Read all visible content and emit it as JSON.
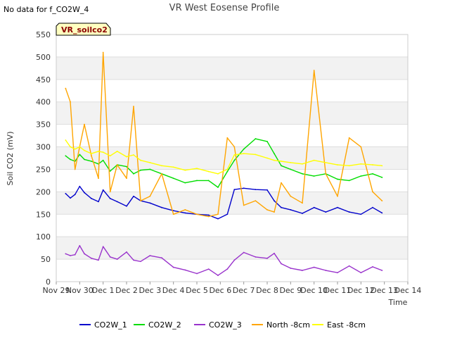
{
  "chart_data": {
    "type": "line",
    "title": "VR West Eosense Profile",
    "note": "No data for f_CO2W_4",
    "badge": "VR_soilco2",
    "xlabel": "Time",
    "ylabel": "Soil CO2 (mV)",
    "ylim": [
      0,
      550
    ],
    "yticks": [
      0,
      50,
      100,
      150,
      200,
      250,
      300,
      350,
      400,
      450,
      500,
      550
    ],
    "x_start": "Nov 29",
    "x_ticks": [
      "Nov 29",
      "Nov 30",
      "Dec 1",
      "Dec 2",
      "Dec 3",
      "Dec 4",
      "Dec 5",
      "Dec 6",
      "Dec 7",
      "Dec 8",
      "Dec 9",
      "Dec 10",
      "Dec 11",
      "Dec 12",
      "Dec 13",
      "Dec 14"
    ],
    "grid": true,
    "legend_position": "bottom",
    "series": [
      {
        "name": "CO2W_1",
        "color": "#0000cc",
        "x": [
          0.4,
          0.6,
          0.8,
          1.0,
          1.2,
          1.5,
          1.8,
          2.0,
          2.3,
          2.6,
          3.0,
          3.3,
          3.6,
          4.0,
          4.5,
          5.0,
          5.5,
          6.0,
          6.5,
          6.9,
          7.3,
          7.6,
          8.0,
          8.5,
          9.0,
          9.3,
          9.6,
          10.0,
          10.5,
          11.0,
          11.5,
          12.0,
          12.5,
          13.0,
          13.5,
          13.9
        ],
        "y": [
          196,
          186,
          194,
          212,
          198,
          185,
          178,
          204,
          185,
          178,
          168,
          190,
          180,
          175,
          165,
          158,
          153,
          150,
          148,
          140,
          150,
          205,
          208,
          205,
          204,
          180,
          165,
          160,
          152,
          165,
          155,
          165,
          155,
          150,
          165,
          153
        ]
      },
      {
        "name": "CO2W_2",
        "color": "#00dd00",
        "x": [
          0.4,
          0.6,
          0.8,
          1.0,
          1.2,
          1.5,
          1.8,
          2.0,
          2.3,
          2.6,
          3.0,
          3.3,
          3.6,
          4.0,
          4.5,
          5.0,
          5.5,
          6.0,
          6.5,
          6.9,
          7.3,
          7.6,
          8.0,
          8.5,
          9.0,
          9.3,
          9.6,
          10.0,
          10.5,
          11.0,
          11.5,
          12.0,
          12.5,
          13.0,
          13.5,
          13.9
        ],
        "y": [
          280,
          272,
          268,
          283,
          272,
          268,
          262,
          270,
          246,
          260,
          256,
          240,
          248,
          250,
          240,
          230,
          220,
          225,
          225,
          210,
          245,
          270,
          295,
          318,
          312,
          285,
          258,
          250,
          240,
          235,
          240,
          228,
          225,
          235,
          240,
          232
        ]
      },
      {
        "name": "CO2W_3",
        "color": "#9933cc",
        "x": [
          0.4,
          0.6,
          0.8,
          1.0,
          1.2,
          1.5,
          1.8,
          2.0,
          2.3,
          2.6,
          3.0,
          3.3,
          3.6,
          4.0,
          4.5,
          5.0,
          5.5,
          6.0,
          6.5,
          6.9,
          7.3,
          7.6,
          8.0,
          8.5,
          9.0,
          9.3,
          9.6,
          10.0,
          10.5,
          11.0,
          11.5,
          12.0,
          12.5,
          13.0,
          13.5,
          13.9
        ],
        "y": [
          62,
          58,
          60,
          80,
          62,
          52,
          48,
          78,
          55,
          50,
          66,
          48,
          45,
          58,
          53,
          32,
          26,
          18,
          28,
          14,
          28,
          48,
          65,
          55,
          52,
          63,
          40,
          30,
          25,
          32,
          25,
          20,
          35,
          20,
          33,
          25
        ]
      },
      {
        "name": "North -8cm",
        "color": "#ffa500",
        "x": [
          0.4,
          0.6,
          0.8,
          1.0,
          1.2,
          1.5,
          1.8,
          2.0,
          2.3,
          2.6,
          3.0,
          3.3,
          3.6,
          4.0,
          4.5,
          5.0,
          5.5,
          6.0,
          6.5,
          6.9,
          7.3,
          7.6,
          8.0,
          8.5,
          9.0,
          9.3,
          9.6,
          10.0,
          10.5,
          11.0,
          11.5,
          12.0,
          12.5,
          13.0,
          13.5,
          13.9
        ],
        "y": [
          430,
          400,
          250,
          300,
          350,
          280,
          230,
          510,
          200,
          260,
          230,
          390,
          180,
          190,
          240,
          150,
          160,
          150,
          145,
          150,
          320,
          300,
          170,
          180,
          160,
          155,
          220,
          190,
          175,
          470,
          240,
          190,
          320,
          300,
          200,
          180
        ]
      },
      {
        "name": "East -8cm",
        "color": "#ffff00",
        "x": [
          0.4,
          0.6,
          0.8,
          1.0,
          1.2,
          1.5,
          1.8,
          2.0,
          2.3,
          2.6,
          3.0,
          3.3,
          3.6,
          4.0,
          4.5,
          5.0,
          5.5,
          6.0,
          6.5,
          6.9,
          7.3,
          7.6,
          8.0,
          8.5,
          9.0,
          9.3,
          9.6,
          10.0,
          10.5,
          11.0,
          11.5,
          12.0,
          12.5,
          13.0,
          13.5,
          13.9
        ],
        "y": [
          315,
          300,
          295,
          300,
          292,
          285,
          290,
          288,
          280,
          290,
          278,
          282,
          270,
          265,
          258,
          255,
          248,
          252,
          245,
          240,
          250,
          282,
          285,
          283,
          275,
          270,
          268,
          265,
          262,
          270,
          265,
          260,
          258,
          262,
          260,
          258
        ]
      }
    ]
  }
}
